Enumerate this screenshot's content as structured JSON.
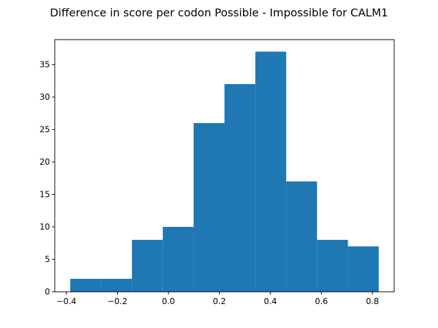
{
  "chart_data": {
    "type": "bar",
    "title": "Difference in score per codon Possible - Impossible for CALM1",
    "xlabel": "",
    "ylabel": "",
    "bin_edges": [
      -0.385,
      -0.264,
      -0.143,
      -0.022,
      0.099,
      0.22,
      0.341,
      0.462,
      0.583,
      0.704,
      0.825
    ],
    "values": [
      2,
      2,
      8,
      10,
      26,
      32,
      37,
      17,
      8,
      7
    ],
    "xlim": [
      -0.4456,
      0.8855
    ],
    "ylim": [
      0,
      38.85
    ],
    "x_ticks": [
      -0.4,
      -0.2,
      0.0,
      0.2,
      0.4,
      0.6,
      0.8
    ],
    "x_tick_labels": [
      "−0.4",
      "−0.2",
      "0.0",
      "0.2",
      "0.4",
      "0.6",
      "0.8"
    ],
    "y_ticks": [
      0,
      5,
      10,
      15,
      20,
      25,
      30,
      35
    ],
    "y_tick_labels": [
      "0",
      "5",
      "10",
      "15",
      "20",
      "25",
      "30",
      "35"
    ],
    "grid": false,
    "bar_color": "#1f77b4"
  }
}
